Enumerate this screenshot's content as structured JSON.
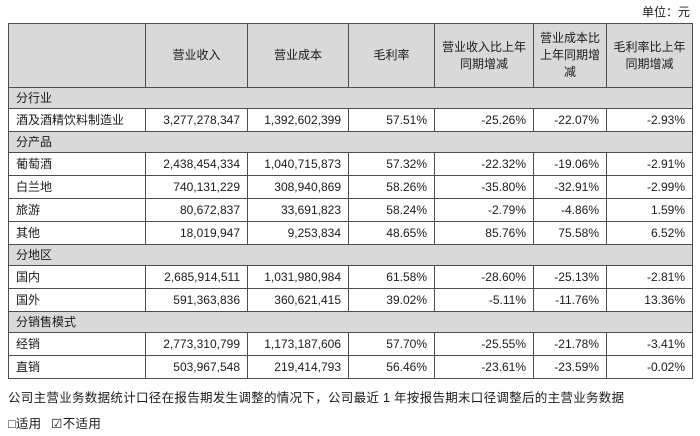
{
  "unit_label": "单位：元",
  "table": {
    "columns": [
      "",
      "营业收入",
      "营业成本",
      "毛利率",
      "营业收入比上年同期增减",
      "营业成本比上年同期增减",
      "毛利率比上年同期增减"
    ],
    "sections": [
      {
        "title": "分行业",
        "rows": [
          {
            "label": "酒及酒精饮料制造业",
            "revenue": "3,277,278,347",
            "cost": "1,392,602,399",
            "margin": "57.51%",
            "revenue_yoy": "-25.26%",
            "cost_yoy": "-22.07%",
            "margin_yoy": "-2.93%"
          }
        ]
      },
      {
        "title": "分产品",
        "rows": [
          {
            "label": "葡萄酒",
            "revenue": "2,438,454,334",
            "cost": "1,040,715,873",
            "margin": "57.32%",
            "revenue_yoy": "-22.32%",
            "cost_yoy": "-19.06%",
            "margin_yoy": "-2.91%"
          },
          {
            "label": "白兰地",
            "revenue": "740,131,229",
            "cost": "308,940,869",
            "margin": "58.26%",
            "revenue_yoy": "-35.80%",
            "cost_yoy": "-32.91%",
            "margin_yoy": "-2.99%"
          },
          {
            "label": "旅游",
            "revenue": "80,672,837",
            "cost": "33,691,823",
            "margin": "58.24%",
            "revenue_yoy": "-2.79%",
            "cost_yoy": "-4.86%",
            "margin_yoy": "1.59%"
          },
          {
            "label": "其他",
            "revenue": "18,019,947",
            "cost": "9,253,834",
            "margin": "48.65%",
            "revenue_yoy": "85.76%",
            "cost_yoy": "75.58%",
            "margin_yoy": "6.52%"
          }
        ]
      },
      {
        "title": "分地区",
        "rows": [
          {
            "label": "国内",
            "revenue": "2,685,914,511",
            "cost": "1,031,980,984",
            "margin": "61.58%",
            "revenue_yoy": "-28.60%",
            "cost_yoy": "-25.13%",
            "margin_yoy": "-2.81%"
          },
          {
            "label": "国外",
            "revenue": "591,363,836",
            "cost": "360,621,415",
            "margin": "39.02%",
            "revenue_yoy": "-5.11%",
            "cost_yoy": "-11.76%",
            "margin_yoy": "13.36%"
          }
        ]
      },
      {
        "title": "分销售模式",
        "rows": [
          {
            "label": "经销",
            "revenue": "2,773,310,799",
            "cost": "1,173,187,606",
            "margin": "57.70%",
            "revenue_yoy": "-25.55%",
            "cost_yoy": "-21.78%",
            "margin_yoy": "-3.41%"
          },
          {
            "label": "直销",
            "revenue": "503,967,548",
            "cost": "219,414,793",
            "margin": "56.46%",
            "revenue_yoy": "-23.61%",
            "cost_yoy": "-23.59%",
            "margin_yoy": "-0.02%"
          }
        ]
      }
    ]
  },
  "footer": {
    "note": "公司主营业务数据统计口径在报告期发生调整的情况下，公司最近 1 年按报告期末口径调整后的主营业务数据",
    "applicable_option": "□适用",
    "not_applicable_option": "☑不适用"
  }
}
